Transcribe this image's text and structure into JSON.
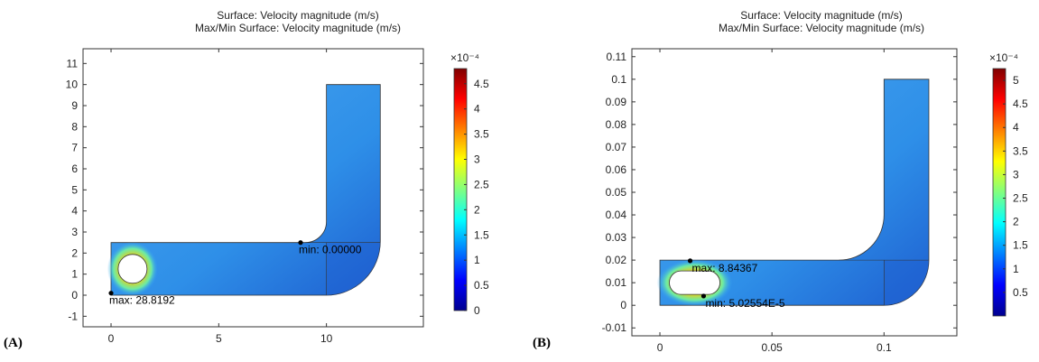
{
  "panels": [
    {
      "label": "(A)",
      "title_line1": "Surface: Velocity magnitude (m/s)",
      "title_line2": "Max/Min Surface: Velocity magnitude (m/s)",
      "colorbar_exponent": "×10⁻⁴",
      "annotations": {
        "max": "max: 28.8192",
        "min": "min: 0.00000"
      }
    },
    {
      "label": "(B)",
      "title_line1": "Surface: Velocity magnitude (m/s)",
      "title_line2": "Max/Min Surface: Velocity magnitude (m/s)",
      "colorbar_exponent": "×10⁻⁴",
      "annotations": {
        "max": "max: 8.84367",
        "min": "min: 5.02554E-5"
      }
    }
  ],
  "colors": {
    "colormap": [
      "#00008f",
      "#0000ff",
      "#0080ff",
      "#00ffff",
      "#80ff80",
      "#ffff00",
      "#ff8000",
      "#ff0000",
      "#800000"
    ],
    "domain_base": "#2e8fe8",
    "domain_light": "#4aa6ef",
    "domain_dark": "#1e5fd0"
  },
  "chart_data": [
    {
      "type": "heatmap",
      "title": "Surface: Velocity magnitude (m/s) / Max/Min Surface: Velocity magnitude (m/s)",
      "xlim": [
        -1.3,
        14.5
      ],
      "ylim": [
        -1.5,
        11.7
      ],
      "x_ticks": [
        "0",
        "5",
        "10"
      ],
      "x_tick_values": [
        0,
        5,
        10
      ],
      "y_ticks": [
        "-1",
        "0",
        "1",
        "2",
        "3",
        "4",
        "5",
        "6",
        "7",
        "8",
        "9",
        "10",
        "11"
      ],
      "y_tick_values": [
        -1,
        0,
        1,
        2,
        3,
        4,
        5,
        6,
        7,
        8,
        9,
        10,
        11
      ],
      "colorbar_ticks": [
        "0",
        "0.5",
        "1",
        "1.5",
        "2",
        "2.5",
        "3",
        "3.5",
        "4",
        "4.5"
      ],
      "colorbar_tick_values": [
        0,
        0.5,
        1,
        1.5,
        2,
        2.5,
        3,
        3.5,
        4,
        4.5
      ],
      "colorbar_range": [
        0,
        4.8
      ],
      "max_point": [
        0,
        0.1
      ],
      "min_point": [
        8.8,
        2.5
      ]
    },
    {
      "type": "heatmap",
      "title": "Surface: Velocity magnitude (m/s) / Max/Min Surface: Velocity magnitude (m/s)",
      "xlim": [
        -0.0125,
        0.1325
      ],
      "ylim": [
        -0.0135,
        0.1135
      ],
      "x_ticks": [
        "0",
        "0.05",
        "0.1"
      ],
      "x_tick_values": [
        0,
        0.05,
        0.1
      ],
      "y_ticks": [
        "-0.01",
        "0",
        "0.01",
        "0.02",
        "0.03",
        "0.04",
        "0.05",
        "0.06",
        "0.07",
        "0.08",
        "0.09",
        "0.1",
        "0.11"
      ],
      "y_tick_values": [
        -0.01,
        0,
        0.01,
        0.02,
        0.03,
        0.04,
        0.05,
        0.06,
        0.07,
        0.08,
        0.09,
        0.1,
        0.11
      ],
      "colorbar_ticks": [
        "0.5",
        "1",
        "1.5",
        "2",
        "2.5",
        "3",
        "3.5",
        "4",
        "4.5",
        "5"
      ],
      "colorbar_tick_values": [
        0.5,
        1,
        1.5,
        2,
        2.5,
        3,
        3.5,
        4,
        4.5,
        5
      ],
      "colorbar_range": [
        0,
        5.25
      ],
      "max_point": [
        0.0135,
        0.0197
      ],
      "min_point": [
        0.0195,
        0.0041
      ]
    }
  ]
}
